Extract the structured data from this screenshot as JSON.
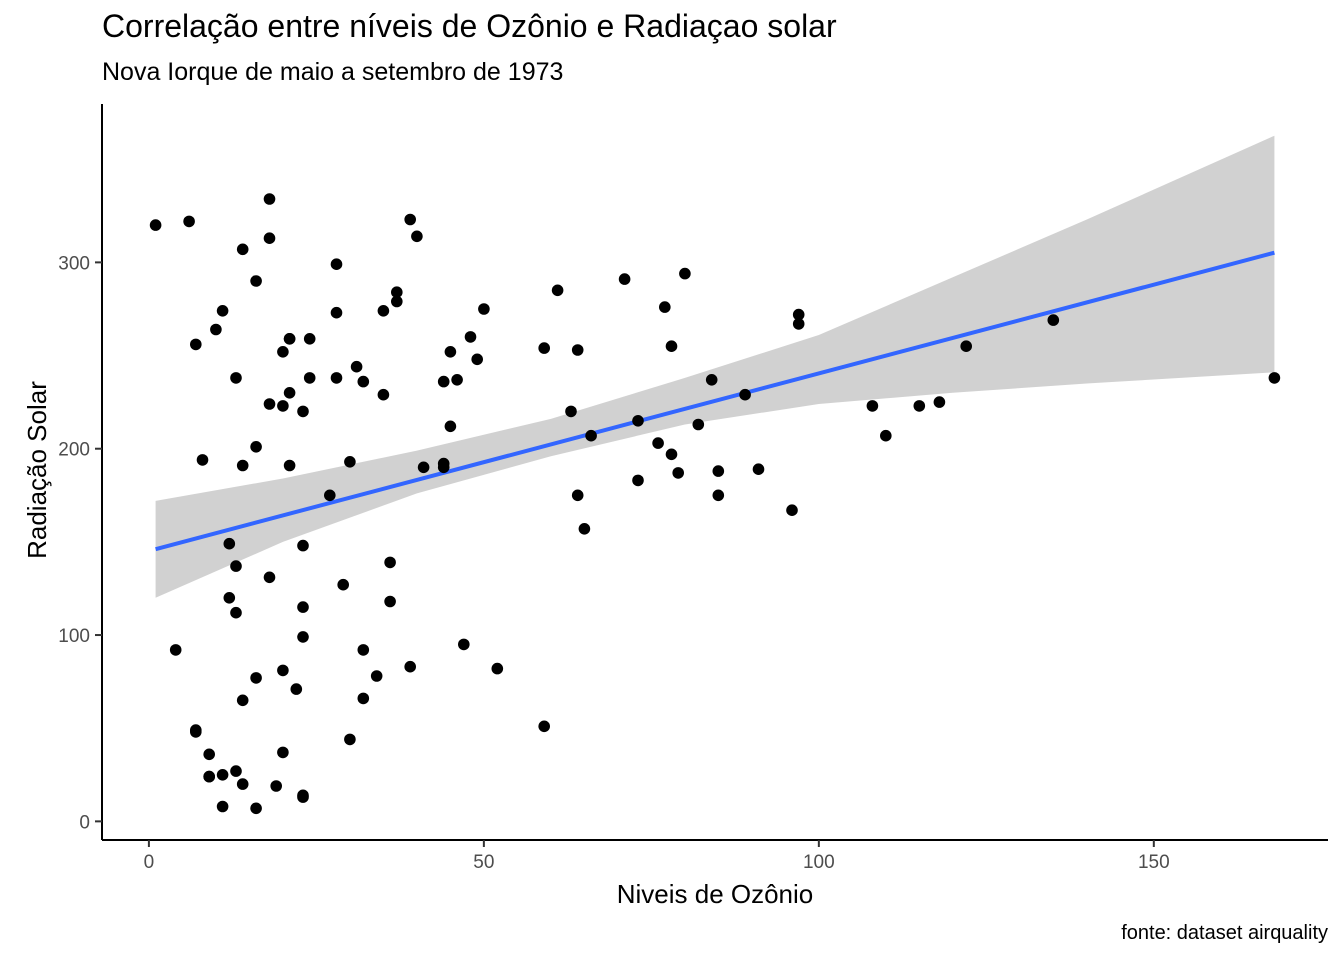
{
  "chart_data": {
    "type": "scatter",
    "title": "Correlação entre níveis de Ozônio e Radiaçao solar",
    "subtitle": "Nova Iorque de maio a setembro de 1973",
    "caption": "fonte: dataset airquality",
    "xlabel": "Niveis de Ozônio",
    "ylabel": "Radiação Solar",
    "xlim": [
      -7,
      176
    ],
    "ylim": [
      -10,
      385
    ],
    "xticks": [
      0,
      50,
      100,
      150
    ],
    "yticks": [
      0,
      100,
      200,
      300
    ],
    "grid": false,
    "colors": {
      "points": "#000000",
      "trend_line": "#3366FF",
      "confidence_band": "#999999"
    },
    "series": [
      {
        "type": "scatter",
        "points": [
          [
            41,
            190
          ],
          [
            36,
            118
          ],
          [
            12,
            149
          ],
          [
            18,
            313
          ],
          [
            28,
            299
          ],
          [
            23,
            99
          ],
          [
            19,
            19
          ],
          [
            8,
            194
          ],
          [
            7,
            256
          ],
          [
            16,
            290
          ],
          [
            11,
            274
          ],
          [
            14,
            65
          ],
          [
            18,
            334
          ],
          [
            14,
            307
          ],
          [
            34,
            78
          ],
          [
            6,
            322
          ],
          [
            30,
            44
          ],
          [
            11,
            8
          ],
          [
            1,
            320
          ],
          [
            11,
            25
          ],
          [
            4,
            92
          ],
          [
            32,
            66
          ],
          [
            23,
            13
          ],
          [
            45,
            252
          ],
          [
            115,
            223
          ],
          [
            37,
            279
          ],
          [
            29,
            127
          ],
          [
            71,
            291
          ],
          [
            39,
            323
          ],
          [
            23,
            148
          ],
          [
            21,
            191
          ],
          [
            37,
            284
          ],
          [
            20,
            37
          ],
          [
            12,
            120
          ],
          [
            13,
            137
          ],
          [
            135,
            269
          ],
          [
            49,
            248
          ],
          [
            32,
            236
          ],
          [
            64,
            175
          ],
          [
            40,
            314
          ],
          [
            77,
            276
          ],
          [
            97,
            267
          ],
          [
            97,
            272
          ],
          [
            85,
            175
          ],
          [
            10,
            264
          ],
          [
            27,
            175
          ],
          [
            7,
            48
          ],
          [
            48,
            260
          ],
          [
            35,
            274
          ],
          [
            61,
            285
          ],
          [
            79,
            187
          ],
          [
            63,
            220
          ],
          [
            16,
            7
          ],
          [
            80,
            294
          ],
          [
            108,
            223
          ],
          [
            20,
            81
          ],
          [
            52,
            82
          ],
          [
            82,
            213
          ],
          [
            50,
            275
          ],
          [
            64,
            253
          ],
          [
            59,
            254
          ],
          [
            39,
            83
          ],
          [
            9,
            24
          ],
          [
            16,
            77
          ],
          [
            78,
            255
          ],
          [
            35,
            229
          ],
          [
            66,
            207
          ],
          [
            122,
            255
          ],
          [
            89,
            229
          ],
          [
            110,
            207
          ],
          [
            44,
            192
          ],
          [
            28,
            273
          ],
          [
            65,
            157
          ],
          [
            22,
            71
          ],
          [
            59,
            51
          ],
          [
            23,
            115
          ],
          [
            31,
            244
          ],
          [
            44,
            190
          ],
          [
            21,
            259
          ],
          [
            9,
            36
          ],
          [
            45,
            212
          ],
          [
            168,
            238
          ],
          [
            73,
            215
          ],
          [
            76,
            203
          ],
          [
            118,
            225
          ],
          [
            84,
            237
          ],
          [
            85,
            188
          ],
          [
            96,
            167
          ],
          [
            78,
            197
          ],
          [
            73,
            183
          ],
          [
            91,
            189
          ],
          [
            47,
            95
          ],
          [
            32,
            92
          ],
          [
            20,
            252
          ],
          [
            23,
            220
          ],
          [
            21,
            230
          ],
          [
            24,
            259
          ],
          [
            44,
            236
          ],
          [
            21,
            259
          ],
          [
            28,
            238
          ],
          [
            9,
            24
          ],
          [
            13,
            112
          ],
          [
            46,
            237
          ],
          [
            18,
            224
          ],
          [
            13,
            27
          ],
          [
            24,
            238
          ],
          [
            16,
            201
          ],
          [
            13,
            238
          ],
          [
            23,
            14
          ],
          [
            36,
            139
          ],
          [
            7,
            49
          ],
          [
            14,
            20
          ],
          [
            30,
            193
          ],
          [
            14,
            191
          ],
          [
            18,
            131
          ],
          [
            20,
            223
          ]
        ]
      },
      {
        "type": "line",
        "name": "",
        "x": [
          1,
          168
        ],
        "y": [
          146.1,
          305.2
        ]
      }
    ],
    "confidence_band": {
      "x": [
        1,
        20,
        40,
        60,
        80,
        100,
        120,
        140,
        168
      ],
      "lower": [
        120,
        150,
        176,
        196,
        213,
        224,
        230,
        235,
        241
      ],
      "upper": [
        172,
        184,
        199,
        216,
        238,
        261,
        292,
        323,
        368
      ]
    }
  }
}
